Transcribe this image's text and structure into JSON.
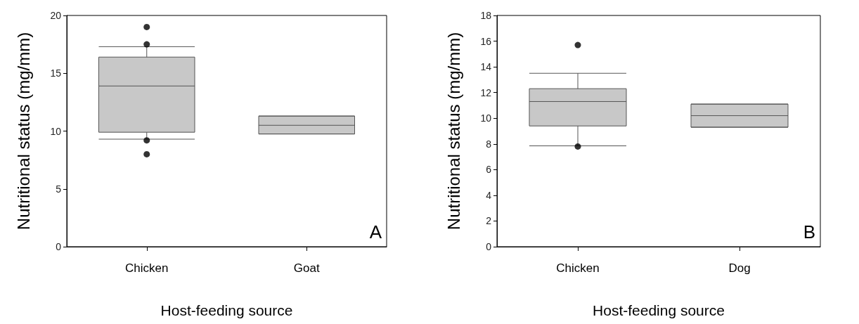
{
  "chart_data": [
    {
      "type": "box",
      "categories": [
        "Chicken",
        "Goat"
      ],
      "xlabel": "Host-feeding source",
      "ylabel": "Nutritional status (mg/mm)",
      "ylim": [
        0,
        20
      ],
      "yticks": [
        0,
        5,
        10,
        15,
        20
      ],
      "grid": false,
      "color": "#c8c8c8",
      "annotations": [
        "A"
      ],
      "boxes": [
        {
          "low": 9.3,
          "q1": 9.9,
          "median": 13.9,
          "q3": 16.4,
          "high": 17.3,
          "outliers": [
            19.0,
            17.5,
            9.2,
            8.0
          ]
        },
        {
          "low": 9.75,
          "q1": 9.75,
          "median": 10.5,
          "q3": 11.3,
          "high": 11.3
        }
      ]
    },
    {
      "type": "box",
      "categories": [
        "Chicken",
        "Dog"
      ],
      "xlabel": "Host-feeding source",
      "ylabel": "Nutritional status (mg/mm)",
      "ylim": [
        0,
        18
      ],
      "yticks": [
        0,
        2,
        4,
        6,
        8,
        10,
        12,
        14,
        16,
        18
      ],
      "grid": false,
      "color": "#c8c8c8",
      "annotations": [
        "B"
      ],
      "boxes": [
        {
          "low": 7.85,
          "q1": 9.4,
          "median": 11.3,
          "q3": 12.3,
          "high": 13.5,
          "outliers": [
            15.7,
            7.8
          ]
        },
        {
          "low": 9.3,
          "q1": 9.3,
          "median": 10.2,
          "q3": 11.1,
          "high": 11.1
        }
      ]
    }
  ]
}
